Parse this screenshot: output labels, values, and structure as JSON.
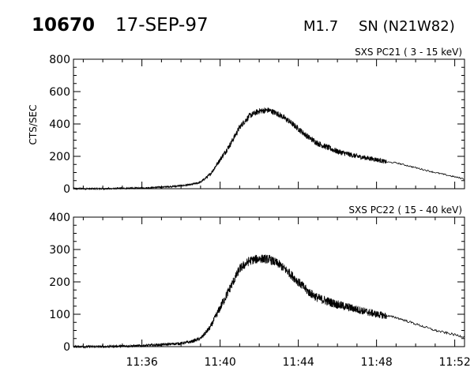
{
  "header": {
    "event_number": "10670",
    "date": "17-SEP-97",
    "flare_class": "M1.7",
    "location": "SN (N21W82)"
  },
  "chart_data": [
    {
      "type": "line",
      "title": "SXS PC21  (  3 - 15 keV)",
      "ylabel": "CTS/SEC",
      "xlim": [
        "11:32:30",
        "11:52:30"
      ],
      "ylim": [
        0,
        800
      ],
      "yticks": [
        0,
        200,
        400,
        600,
        800
      ],
      "xticks": [
        "11:36",
        "11:40",
        "11:44",
        "11:48",
        "11:52"
      ],
      "x_tick_labels_shown": false,
      "noise_end": "11:48:30",
      "noise_amplitude": 18,
      "series": [
        {
          "x": [
            "11:32:30",
            "11:34:00",
            "11:36:00",
            "11:37:00",
            "11:38:00",
            "11:38:30",
            "11:39:00",
            "11:39:30",
            "11:40:00",
            "11:40:30",
            "11:41:00",
            "11:41:30",
            "11:42:00",
            "11:42:30",
            "11:43:00",
            "11:43:30",
            "11:44:00",
            "11:44:30",
            "11:45:00",
            "11:46:00",
            "11:47:00",
            "11:48:00",
            "11:48:30",
            "11:49:00",
            "11:50:00",
            "11:51:00",
            "11:52:30"
          ],
          "y": [
            0,
            0,
            4,
            10,
            18,
            25,
            40,
            90,
            180,
            270,
            380,
            450,
            480,
            485,
            460,
            420,
            370,
            320,
            280,
            230,
            200,
            180,
            165,
            160,
            130,
            100,
            60
          ]
        }
      ]
    },
    {
      "type": "line",
      "title": "SXS PC22  ( 15 - 40 keV)",
      "ylabel": "",
      "xlim": [
        "11:32:30",
        "11:52:30"
      ],
      "ylim": [
        0,
        400
      ],
      "yticks": [
        0,
        100,
        200,
        300,
        400
      ],
      "xticks": [
        "11:36",
        "11:40",
        "11:44",
        "11:48",
        "11:52"
      ],
      "x_tick_labels_shown": true,
      "noise_end": "11:48:30",
      "noise_amplitude": 14,
      "series": [
        {
          "x": [
            "11:32:30",
            "11:34:00",
            "11:36:00",
            "11:37:00",
            "11:38:00",
            "11:38:30",
            "11:39:00",
            "11:39:30",
            "11:40:00",
            "11:40:30",
            "11:41:00",
            "11:41:30",
            "11:42:00",
            "11:42:30",
            "11:43:00",
            "11:43:30",
            "11:44:00",
            "11:44:30",
            "11:45:00",
            "11:46:00",
            "11:47:00",
            "11:48:00",
            "11:48:30",
            "11:49:00",
            "11:50:00",
            "11:51:00",
            "11:52:30"
          ],
          "y": [
            0,
            0,
            3,
            6,
            10,
            15,
            25,
            60,
            120,
            180,
            240,
            265,
            272,
            270,
            255,
            230,
            200,
            170,
            150,
            130,
            115,
            100,
            95,
            90,
            70,
            50,
            30
          ]
        }
      ]
    }
  ]
}
